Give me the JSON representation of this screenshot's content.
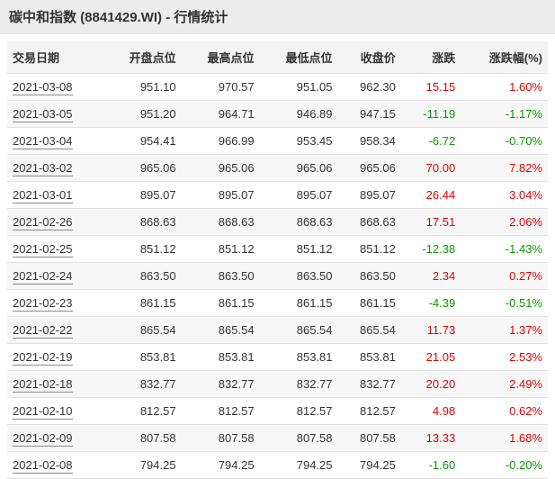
{
  "header": {
    "title": "碳中和指数 (8841429.WI) - 行情统计"
  },
  "table": {
    "columns": [
      "交易日期",
      "开盘点位",
      "最高点位",
      "最低点位",
      "收盘价",
      "涨跌",
      "涨跌幅(%)"
    ],
    "rows": [
      {
        "date": "2021-03-08",
        "open": "951.10",
        "high": "970.57",
        "low": "951.05",
        "close": "962.30",
        "chg": "15.15",
        "pct": "1.60%",
        "dir": "up"
      },
      {
        "date": "2021-03-05",
        "open": "951.20",
        "high": "964.71",
        "low": "946.89",
        "close": "947.15",
        "chg": "-11.19",
        "pct": "-1.17%",
        "dir": "down"
      },
      {
        "date": "2021-03-04",
        "open": "954.41",
        "high": "966.99",
        "low": "953.45",
        "close": "958.34",
        "chg": "-6.72",
        "pct": "-0.70%",
        "dir": "down"
      },
      {
        "date": "2021-03-02",
        "open": "965.06",
        "high": "965.06",
        "low": "965.06",
        "close": "965.06",
        "chg": "70.00",
        "pct": "7.82%",
        "dir": "up"
      },
      {
        "date": "2021-03-01",
        "open": "895.07",
        "high": "895.07",
        "low": "895.07",
        "close": "895.07",
        "chg": "26.44",
        "pct": "3.04%",
        "dir": "up"
      },
      {
        "date": "2021-02-26",
        "open": "868.63",
        "high": "868.63",
        "low": "868.63",
        "close": "868.63",
        "chg": "17.51",
        "pct": "2.06%",
        "dir": "up"
      },
      {
        "date": "2021-02-25",
        "open": "851.12",
        "high": "851.12",
        "low": "851.12",
        "close": "851.12",
        "chg": "-12.38",
        "pct": "-1.43%",
        "dir": "down"
      },
      {
        "date": "2021-02-24",
        "open": "863.50",
        "high": "863.50",
        "low": "863.50",
        "close": "863.50",
        "chg": "2.34",
        "pct": "0.27%",
        "dir": "up"
      },
      {
        "date": "2021-02-23",
        "open": "861.15",
        "high": "861.15",
        "low": "861.15",
        "close": "861.15",
        "chg": "-4.39",
        "pct": "-0.51%",
        "dir": "down"
      },
      {
        "date": "2021-02-22",
        "open": "865.54",
        "high": "865.54",
        "low": "865.54",
        "close": "865.54",
        "chg": "11.73",
        "pct": "1.37%",
        "dir": "up"
      },
      {
        "date": "2021-02-19",
        "open": "853.81",
        "high": "853.81",
        "low": "853.81",
        "close": "853.81",
        "chg": "21.05",
        "pct": "2.53%",
        "dir": "up"
      },
      {
        "date": "2021-02-18",
        "open": "832.77",
        "high": "832.77",
        "low": "832.77",
        "close": "832.77",
        "chg": "20.20",
        "pct": "2.49%",
        "dir": "up"
      },
      {
        "date": "2021-02-10",
        "open": "812.57",
        "high": "812.57",
        "low": "812.57",
        "close": "812.57",
        "chg": "4.98",
        "pct": "0.62%",
        "dir": "up"
      },
      {
        "date": "2021-02-09",
        "open": "807.58",
        "high": "807.58",
        "low": "807.58",
        "close": "807.58",
        "chg": "13.33",
        "pct": "1.68%",
        "dir": "up"
      },
      {
        "date": "2021-02-08",
        "open": "794.25",
        "high": "794.25",
        "low": "794.25",
        "close": "794.25",
        "chg": "-1.60",
        "pct": "-0.20%",
        "dir": "down"
      }
    ]
  },
  "colors": {
    "up": "#e40000",
    "down": "#0a9a00",
    "header_bg": "#ececec",
    "row_alt_bg": "#f7f7f7",
    "border": "#e0e0e0",
    "text": "#333333"
  }
}
